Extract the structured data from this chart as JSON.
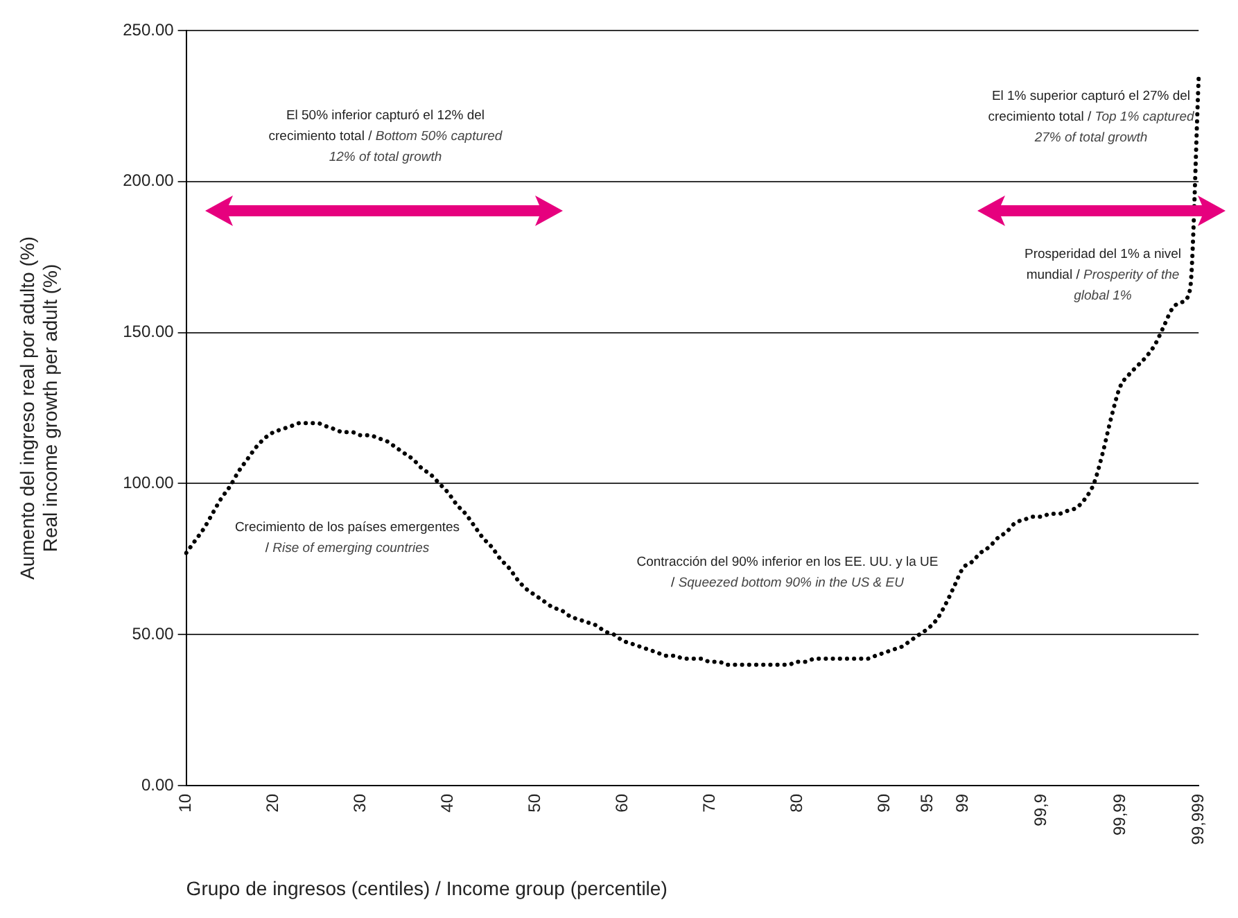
{
  "chart_data": {
    "type": "line",
    "xlabel": "Grupo de ingresos (centiles) / Income group (percentile)",
    "ylabel": "Aumento del ingreso real por adulto (%)\nReal income growth per adult (%)",
    "categories": [
      "10",
      null,
      null,
      null,
      null,
      null,
      null,
      null,
      null,
      null,
      "20",
      null,
      null,
      null,
      null,
      null,
      null,
      null,
      null,
      null,
      "30",
      null,
      null,
      null,
      null,
      null,
      null,
      null,
      null,
      null,
      "40",
      null,
      null,
      null,
      null,
      null,
      null,
      null,
      null,
      null,
      "50",
      null,
      null,
      null,
      null,
      null,
      null,
      null,
      null,
      null,
      "60",
      null,
      null,
      null,
      null,
      null,
      null,
      null,
      null,
      null,
      "70",
      null,
      null,
      null,
      null,
      null,
      null,
      null,
      null,
      null,
      "80",
      null,
      null,
      null,
      null,
      null,
      null,
      null,
      null,
      null,
      "90",
      null,
      null,
      null,
      null,
      "95",
      null,
      null,
      null,
      "99",
      null,
      null,
      null,
      null,
      null,
      null,
      null,
      null,
      "99,9",
      null,
      null,
      null,
      null,
      null,
      null,
      null,
      null,
      "99,99",
      null,
      null,
      null,
      null,
      null,
      null,
      null,
      null,
      "99,999"
    ],
    "series": [
      {
        "color": "#000000",
        "values": [
          77,
          81,
          85,
          90,
          95,
          99,
          104,
          108,
          112,
          115,
          117,
          118,
          119,
          120,
          120,
          120,
          119,
          118,
          117,
          117,
          116,
          116,
          115,
          114,
          112,
          110,
          108,
          105,
          103,
          100,
          97,
          93,
          90,
          86,
          82,
          79,
          75,
          72,
          68,
          65,
          63,
          61,
          59,
          58,
          56,
          55,
          54,
          53,
          51,
          50,
          48,
          47,
          46,
          45,
          44,
          43,
          43,
          42,
          42,
          42,
          41,
          41,
          40,
          40,
          40,
          40,
          40,
          40,
          40,
          40,
          41,
          41,
          42,
          42,
          42,
          42,
          42,
          42,
          42,
          43,
          44,
          45,
          46,
          48,
          50,
          52,
          55,
          60,
          66,
          72,
          74,
          77,
          79,
          82,
          84,
          87,
          88,
          89,
          89,
          90,
          90,
          91,
          92,
          95,
          100,
          110,
          122,
          132,
          136,
          139,
          142,
          146,
          152,
          158,
          160,
          164,
          234
        ]
      }
    ],
    "ylim": [
      0,
      250
    ],
    "yticks": [
      {
        "value": 0,
        "label": "0.00"
      },
      {
        "value": 50,
        "label": "50.00"
      },
      {
        "value": 100,
        "label": "100.00"
      },
      {
        "value": 150,
        "label": "150.00"
      },
      {
        "value": 200,
        "label": "200.00"
      },
      {
        "value": 250,
        "label": "250.00"
      }
    ],
    "grid": "y",
    "legend": false,
    "marker": "none",
    "line_style": "dotted",
    "annotations": [
      "El 50% inferior capturó el 12% del crecimiento total / Bottom 50% captured 12% of total growth",
      "El 1% superior capturó el 27% del crecimiento total / Top 1% captured 27% of total growth",
      "Prosperidad del 1% a nivel mundial / Prosperity of the global 1%",
      "Crecimiento de los países emergentes / Rise of emerging countries",
      "Contracción del 90% inferior en los EE. UU. y la UE / Squeezed bottom 90% in the US & EU"
    ]
  }
}
